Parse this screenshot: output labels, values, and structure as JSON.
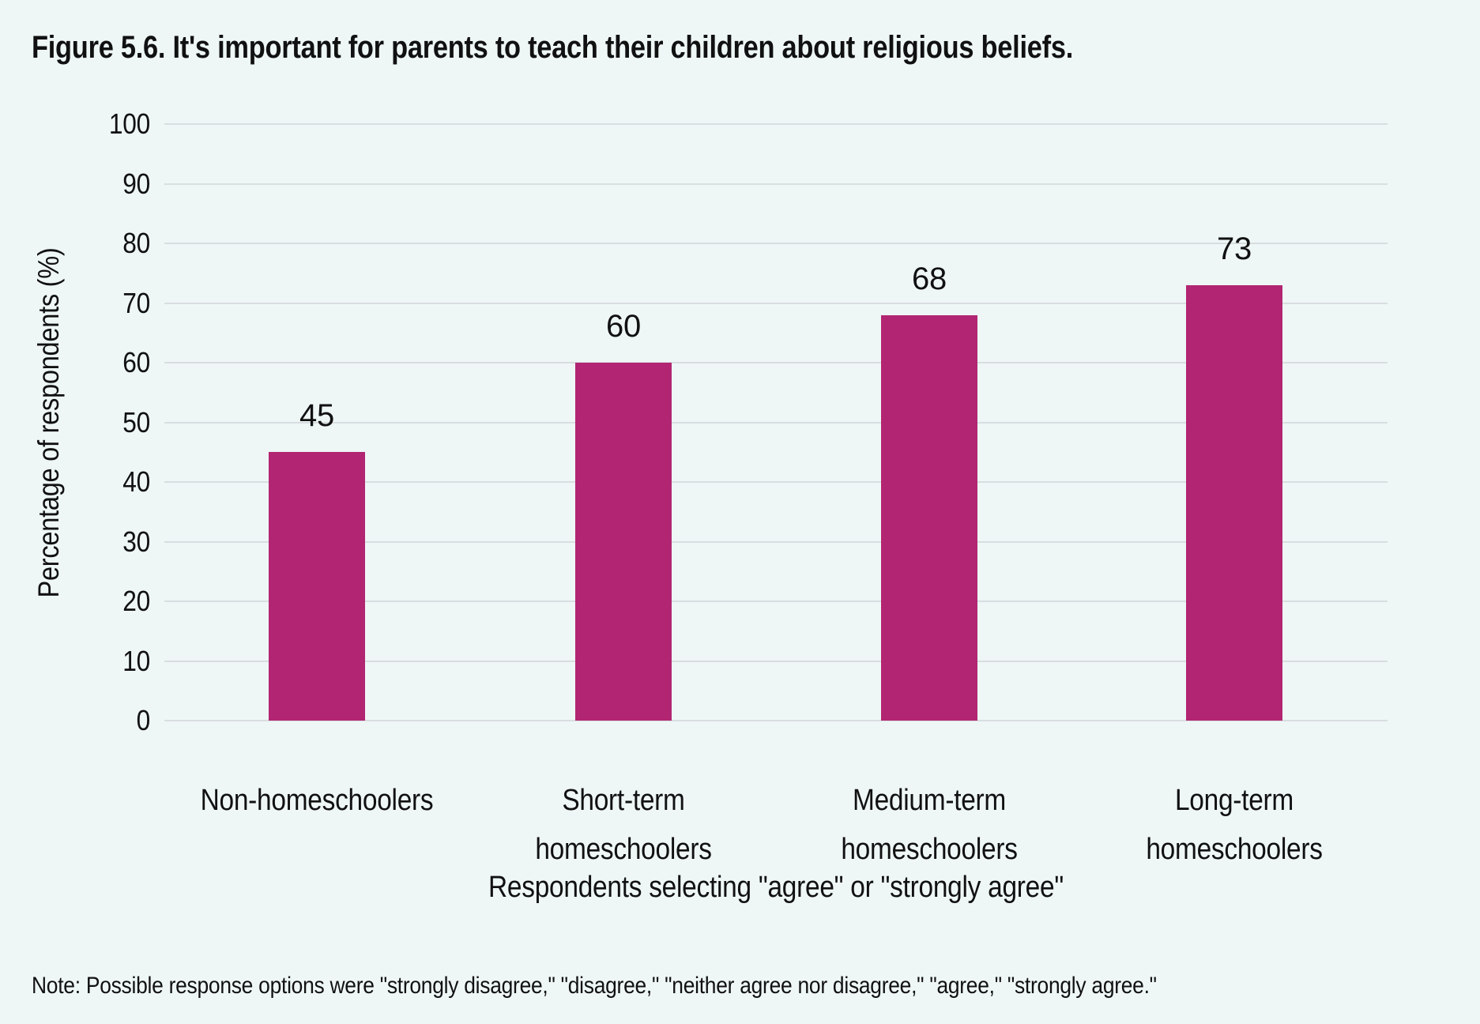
{
  "figure_title": "Figure 5.6. It's important for parents to teach their children about religious beliefs.",
  "note": "Note: Possible response options were \"strongly disagree,\" \"disagree,\" \"neither agree nor disagree,\" \"agree,\" \"strongly agree.\"",
  "colors": {
    "background": "#eef7f6",
    "bar": "#b22572",
    "gridline": "#d9dde0",
    "text": "#111111"
  },
  "chart_data": {
    "type": "bar",
    "title": "Figure 5.6. It's important for parents to teach their children about religious beliefs.",
    "categories": [
      "Non-homeschoolers",
      "Short-term\nhomeschoolers",
      "Medium-term\nhomeschoolers",
      "Long-term\nhomeschoolers"
    ],
    "values": [
      45,
      60,
      68,
      73
    ],
    "value_labels": [
      "45",
      "60",
      "68",
      "73"
    ],
    "xlabel": "Respondents selecting \"agree\" or \"strongly agree\"",
    "ylabel": "Percentage of respondents (%)",
    "ylim": [
      0,
      100
    ],
    "ytick_interval": 10,
    "grid": true,
    "legend": "none",
    "bar_color": "#b22572"
  }
}
